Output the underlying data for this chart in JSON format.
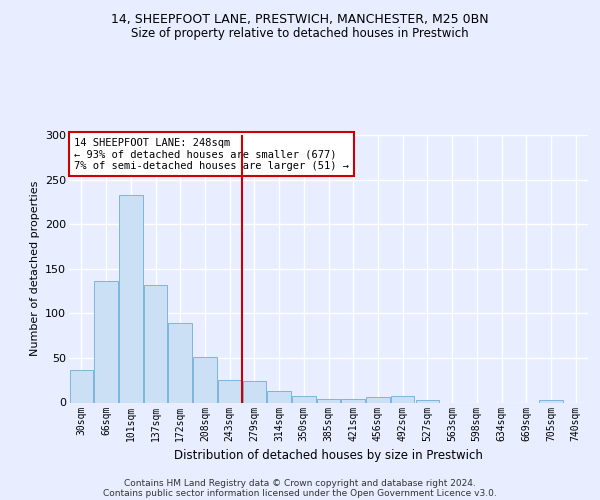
{
  "title1": "14, SHEEPFOOT LANE, PRESTWICH, MANCHESTER, M25 0BN",
  "title2": "Size of property relative to detached houses in Prestwich",
  "xlabel": "Distribution of detached houses by size in Prestwich",
  "ylabel": "Number of detached properties",
  "footer1": "Contains HM Land Registry data © Crown copyright and database right 2024.",
  "footer2": "Contains public sector information licensed under the Open Government Licence v3.0.",
  "bar_labels": [
    "30sqm",
    "66sqm",
    "101sqm",
    "137sqm",
    "172sqm",
    "208sqm",
    "243sqm",
    "279sqm",
    "314sqm",
    "350sqm",
    "385sqm",
    "421sqm",
    "456sqm",
    "492sqm",
    "527sqm",
    "563sqm",
    "598sqm",
    "634sqm",
    "669sqm",
    "705sqm",
    "740sqm"
  ],
  "bar_values": [
    37,
    136,
    233,
    132,
    89,
    51,
    25,
    24,
    13,
    7,
    4,
    4,
    6,
    7,
    3,
    0,
    0,
    0,
    0,
    3,
    0
  ],
  "bar_color": "#cce0f5",
  "bar_edge_color": "#6daed6",
  "background_color": "#e8eeff",
  "grid_color": "#ffffff",
  "vline_x": 6.5,
  "vline_color": "#cc0000",
  "annotation_line1": "14 SHEEPFOOT LANE: 248sqm",
  "annotation_line2": "← 93% of detached houses are smaller (677)",
  "annotation_line3": "7% of semi-detached houses are larger (51) →",
  "annotation_box_color": "#ffffff",
  "annotation_box_edge": "#cc0000",
  "ylim": [
    0,
    300
  ],
  "yticks": [
    0,
    50,
    100,
    150,
    200,
    250,
    300
  ]
}
